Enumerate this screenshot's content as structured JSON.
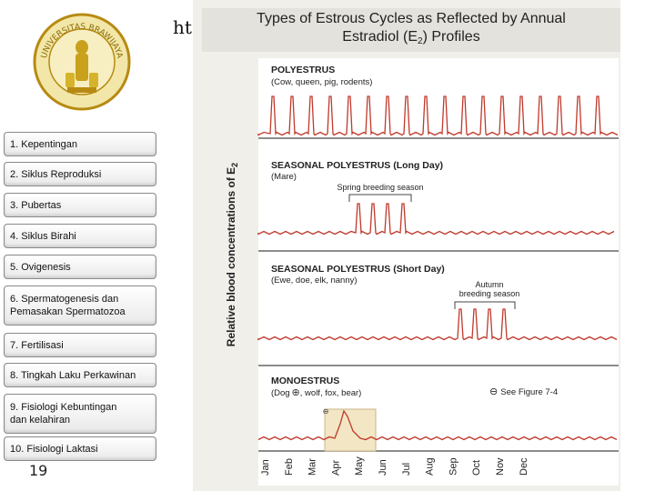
{
  "slide": {
    "header_fragment": "ht",
    "page_number": "19"
  },
  "menu": {
    "items": [
      {
        "label": "1. Kepentingan"
      },
      {
        "label": "2. Siklus Reproduksi"
      },
      {
        "label": "3. Pubertas"
      },
      {
        "label": "4. Siklus Birahi"
      },
      {
        "label": "5. Ovigenesis"
      },
      {
        "label": "6. Spermatogenesis dan\n    Pemasakan Spermatozoa"
      },
      {
        "label": "7. Fertilisasi"
      },
      {
        "label": "8. Tingkah Laku Perkawinan"
      },
      {
        "label": "9. Fisiologi Kebuntingan\n    dan kelahiran"
      },
      {
        "label": "10. Fisiologi Laktasi"
      }
    ]
  },
  "logo": {
    "text": "UNIVERSITAS BRAWIJAYA",
    "icon": "university-seal-icon"
  },
  "figure": {
    "title_line1": "Types of Estrous Cycles as Reflected by Annual",
    "title_line2": "Estradiol (E",
    "title_sub": "2",
    "title_end": ") Profiles",
    "y_axis_label": "Relative blood concentrations of E",
    "y_axis_sub": "2",
    "months": [
      "Jan",
      "Feb",
      "Mar",
      "Apr",
      "May",
      "Jun",
      "Jul",
      "Aug",
      "Sep",
      "Oct",
      "Nov",
      "Dec"
    ],
    "line_color": "#c0392b",
    "panels": [
      {
        "heading": "POLYESTRUS",
        "subheading": "(Cow, queen, pig, rodents)"
      },
      {
        "heading": "SEASONAL POLYESTRUS (Long Day)",
        "subheading": "(Mare)",
        "annotation": "Spring breeding season"
      },
      {
        "heading": "SEASONAL POLYESTRUS (Short Day)",
        "subheading": "(Ewe, doe, elk, nanny)",
        "annotation_line1": "Autumn",
        "annotation_line2": "breeding season"
      },
      {
        "heading": "MONOESTRUS",
        "subheading_pre": "(Dog",
        "subheading_post": ", wolf, fox, bear)",
        "note": "See Figure 7-4"
      }
    ]
  }
}
